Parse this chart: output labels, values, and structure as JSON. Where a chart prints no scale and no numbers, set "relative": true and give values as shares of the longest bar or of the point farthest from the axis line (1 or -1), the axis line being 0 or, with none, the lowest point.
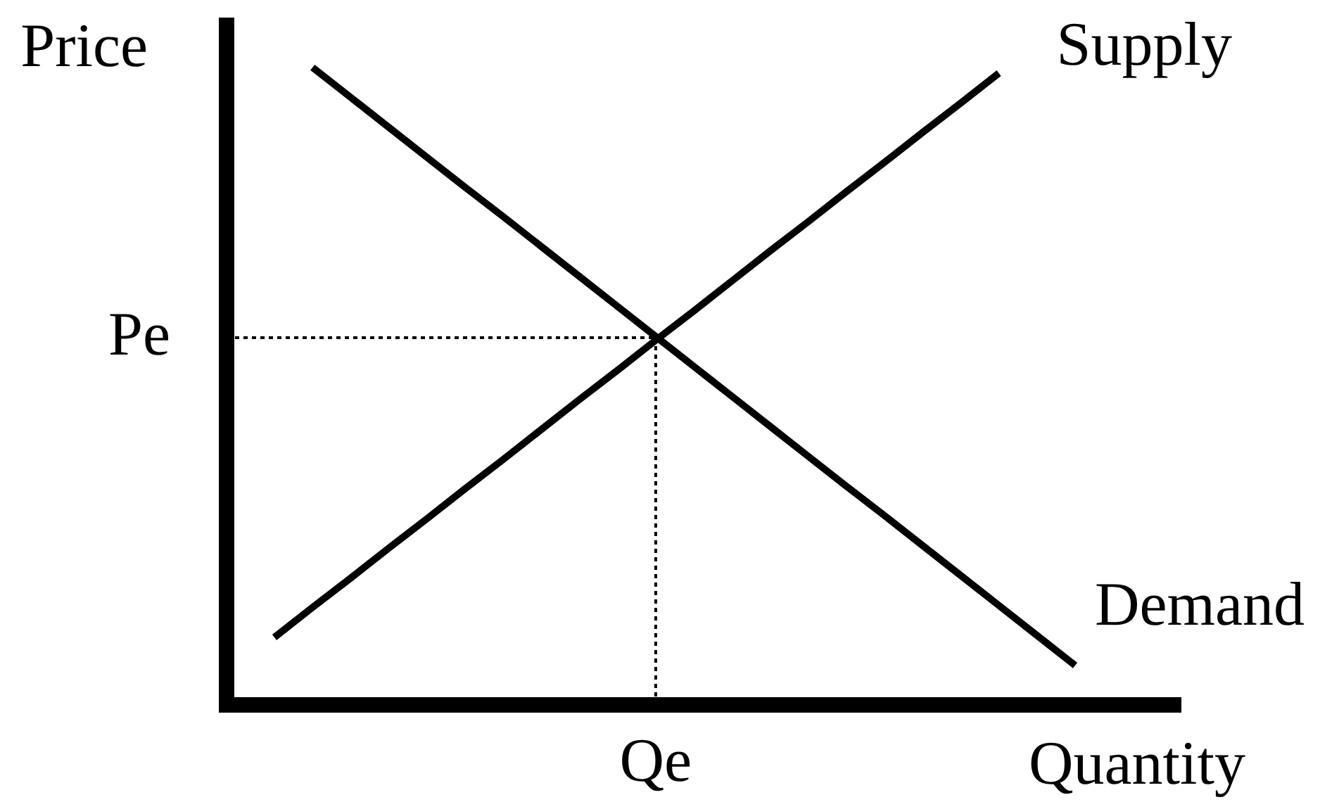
{
  "chart_data": {
    "type": "line",
    "relative": true,
    "xlabel": "Quantity",
    "ylabel": "Price",
    "categories": [
      null,
      null,
      null,
      null,
      null,
      null,
      null,
      null,
      null,
      null,
      null,
      null,
      null,
      null,
      null,
      null,
      null,
      null,
      null,
      null,
      null,
      null
    ],
    "series": [
      {
        "name": "Supply",
        "color": "#000000",
        "values": [
          0.106,
          0.153,
          0.199,
          0.246,
          0.292,
          0.339,
          0.385,
          0.432,
          0.479,
          0.525,
          0.572,
          0.618,
          0.665,
          0.712,
          0.758,
          0.805,
          0.851,
          0.898,
          0.944,
          0.991,
          null,
          null
        ]
      },
      {
        "name": "Demand",
        "color": "#000000",
        "values": [
          null,
          1,
          0.953,
          0.906,
          0.859,
          0.812,
          0.766,
          0.719,
          0.672,
          0.625,
          0.578,
          0.531,
          0.484,
          0.437,
          0.39,
          0.343,
          0.297,
          0.25,
          0.203,
          0.156,
          0.109,
          0.062
        ]
      }
    ],
    "marker": "none",
    "line_style": "solid",
    "ref_lines": [
      {
        "axis": "y",
        "value": 0.576,
        "label": "Pe",
        "color": "#000000",
        "line_style": "dotted"
      }
    ],
    "annotations": [
      "Qe"
    ]
  }
}
